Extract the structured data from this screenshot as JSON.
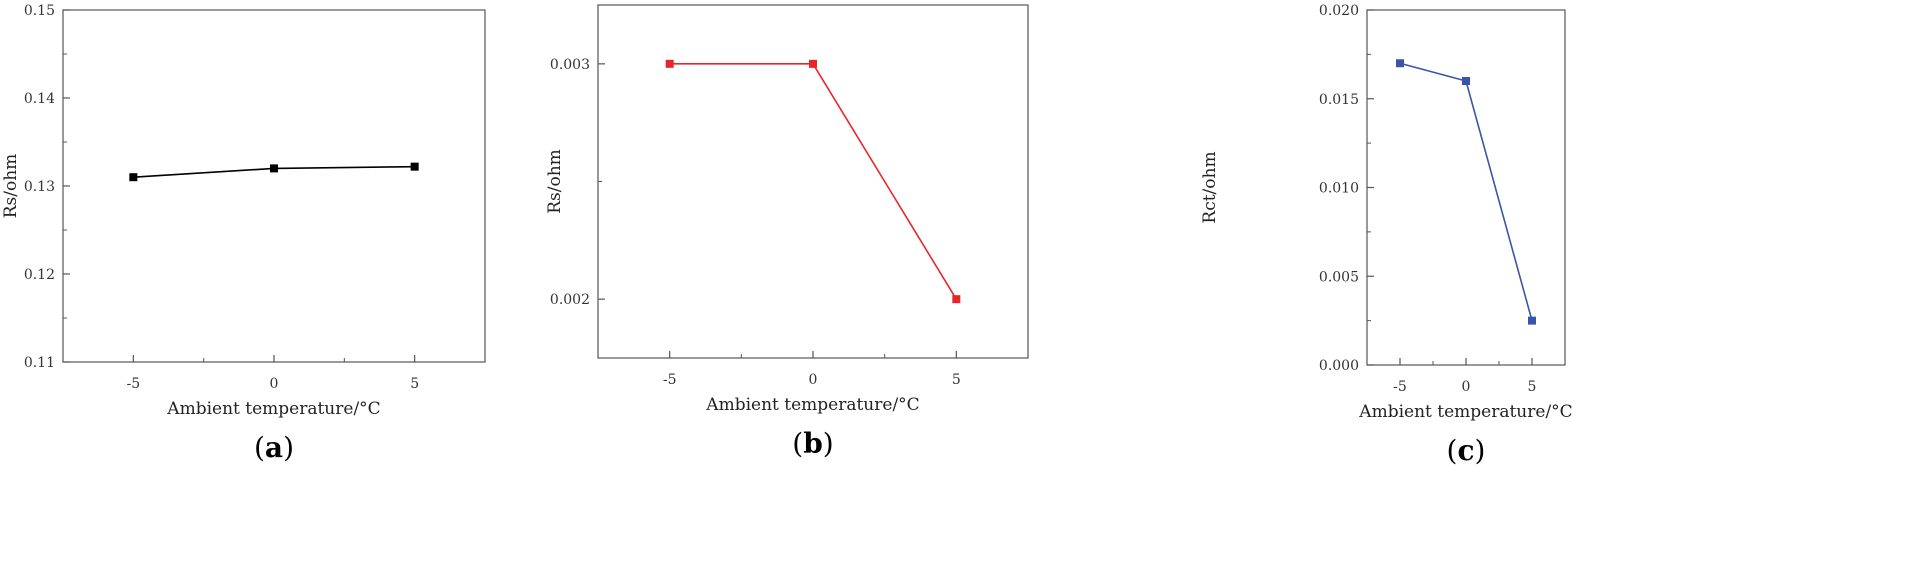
{
  "chart_data": [
    {
      "panel": "(a)",
      "panel_letter": "a",
      "type": "line",
      "xlabel": "Ambient temperature/°C",
      "ylabel": "Rs/ohm",
      "xlim": [
        -7.5,
        7.5
      ],
      "ylim": [
        0.11,
        0.15
      ],
      "xticks": [
        -5,
        0,
        5
      ],
      "xtick_labels": [
        "-5",
        "0",
        "5"
      ],
      "yticks": [
        0.11,
        0.12,
        0.13,
        0.14,
        0.15
      ],
      "ytick_labels": [
        "0.11",
        "0.12",
        "0.13",
        "0.14",
        "0.15"
      ],
      "series": [
        {
          "color": "#000000",
          "x": [
            -5,
            0,
            5
          ],
          "y": [
            0.131,
            0.132,
            0.1322
          ]
        }
      ]
    },
    {
      "panel": "(b)",
      "panel_letter": "b",
      "type": "line",
      "xlabel": "Ambient temperature/°C",
      "ylabel": "Rs/ohm",
      "xlim": [
        -7.5,
        7.5
      ],
      "ylim": [
        0.00175,
        0.00325
      ],
      "xticks": [
        -5,
        0,
        5
      ],
      "xtick_labels": [
        "-5",
        "0",
        "5"
      ],
      "yticks": [
        0.002,
        0.003
      ],
      "ytick_labels": [
        "0.002",
        "0.003"
      ],
      "series": [
        {
          "color": "#e8262a",
          "x": [
            -5,
            0,
            5
          ],
          "y": [
            0.003,
            0.003,
            0.002
          ]
        }
      ]
    },
    {
      "panel": "(c)",
      "panel_letter": "c",
      "type": "line",
      "xlabel": "Ambient temperature/°C",
      "ylabel": "Rct/ohm",
      "xlim": [
        -7.5,
        7.5
      ],
      "ylim": [
        0.0,
        0.02
      ],
      "xticks": [
        -5,
        0,
        5
      ],
      "xtick_labels": [
        "-5",
        "0",
        "5"
      ],
      "yticks": [
        0.0,
        0.005,
        0.01,
        0.015,
        0.02
      ],
      "ytick_labels": [
        "0.000",
        "0.005",
        "0.010",
        "0.015",
        "0.020"
      ],
      "series": [
        {
          "color": "#3a55a8",
          "x": [
            -5,
            0,
            5
          ],
          "y": [
            0.017,
            0.016,
            0.0025
          ]
        }
      ]
    }
  ]
}
